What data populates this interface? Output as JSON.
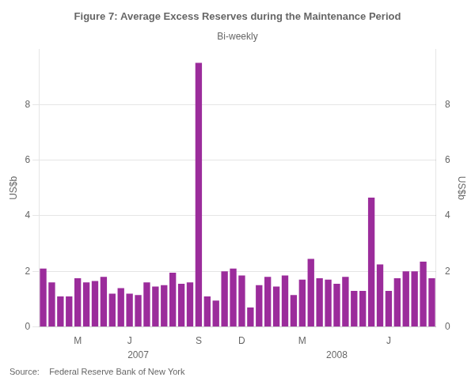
{
  "chart_data": {
    "type": "bar",
    "title": "Figure 7: Average Excess Reserves during the Maintenance Period",
    "subtitle": "Bi-weekly",
    "y_label": "US$b",
    "y2_label": "US$b",
    "source": "Source:    Federal Reserve Bank of New York",
    "annotations": [
      "2007",
      "2008"
    ],
    "categories": [
      null,
      null,
      null,
      null,
      "M",
      null,
      null,
      null,
      null,
      null,
      "J",
      null,
      null,
      null,
      null,
      null,
      null,
      null,
      "S",
      null,
      null,
      null,
      null,
      "D",
      null,
      null,
      null,
      null,
      null,
      null,
      "M",
      null,
      null,
      null,
      null,
      null,
      null,
      null,
      null,
      null,
      "J",
      null,
      null,
      null,
      null,
      null
    ],
    "values": [
      2.1,
      1.6,
      1.1,
      1.1,
      1.75,
      1.6,
      1.65,
      1.8,
      1.2,
      1.4,
      1.2,
      1.15,
      1.6,
      1.45,
      1.5,
      1.95,
      1.55,
      1.6,
      9.5,
      1.1,
      0.95,
      2.0,
      2.1,
      1.85,
      0.7,
      1.5,
      1.8,
      1.45,
      1.85,
      1.15,
      1.7,
      2.45,
      1.75,
      1.7,
      1.55,
      1.8,
      1.3,
      1.3,
      4.65,
      2.25,
      1.3,
      1.75,
      2.0,
      2.0,
      2.35,
      1.75
    ],
    "color": "#9B2C9B",
    "ylim": [
      0,
      10
    ],
    "yticks": [
      0,
      2,
      4,
      6,
      8
    ],
    "y2lim": [
      0,
      10
    ],
    "y2ticks": [
      0,
      2,
      4,
      6,
      8
    ],
    "grid": true
  }
}
